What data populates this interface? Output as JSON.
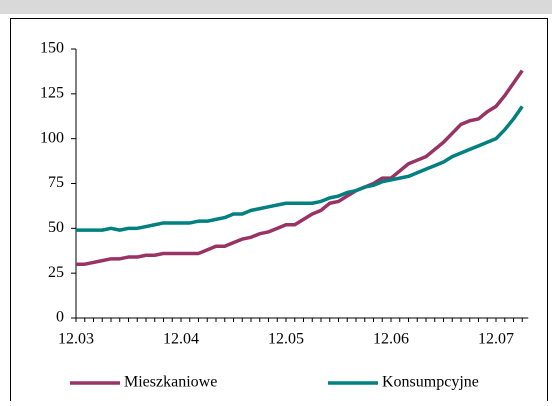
{
  "chart_data": {
    "type": "line",
    "categories": [
      "12.03",
      null,
      null,
      null,
      null,
      null,
      null,
      null,
      null,
      null,
      null,
      null,
      "12.04",
      null,
      null,
      null,
      null,
      null,
      null,
      null,
      null,
      null,
      null,
      null,
      "12.05",
      null,
      null,
      null,
      null,
      null,
      null,
      null,
      null,
      null,
      null,
      null,
      "12.06",
      null,
      null,
      null,
      null,
      null,
      null,
      null,
      null,
      null,
      null,
      null,
      "12.07",
      null,
      null,
      null
    ],
    "series": [
      {
        "name": "Mieszkaniowe",
        "color": "#993366",
        "values": [
          30,
          30,
          31,
          32,
          33,
          33,
          34,
          34,
          35,
          35,
          36,
          36,
          36,
          36,
          36,
          38,
          40,
          40,
          42,
          44,
          45,
          47,
          48,
          50,
          52,
          52,
          55,
          58,
          60,
          64,
          65,
          68,
          71,
          73,
          75,
          78,
          78,
          82,
          86,
          88,
          90,
          94,
          98,
          103,
          108,
          110,
          111,
          115,
          118,
          124,
          131,
          138
        ]
      },
      {
        "name": "Konsumpcyjne",
        "color": "#008080",
        "values": [
          49,
          49,
          49,
          49,
          50,
          49,
          50,
          50,
          51,
          52,
          53,
          53,
          53,
          53,
          54,
          54,
          55,
          56,
          58,
          58,
          60,
          61,
          62,
          63,
          64,
          64,
          64,
          64,
          65,
          67,
          68,
          70,
          71,
          73,
          74,
          76,
          77,
          78,
          79,
          81,
          83,
          85,
          87,
          90,
          92,
          94,
          96,
          98,
          100,
          105,
          111,
          118
        ]
      }
    ],
    "ylim": [
      0,
      150
    ],
    "yticks": [
      0,
      25,
      50,
      75,
      100,
      125,
      150
    ],
    "legend": "bottom"
  }
}
